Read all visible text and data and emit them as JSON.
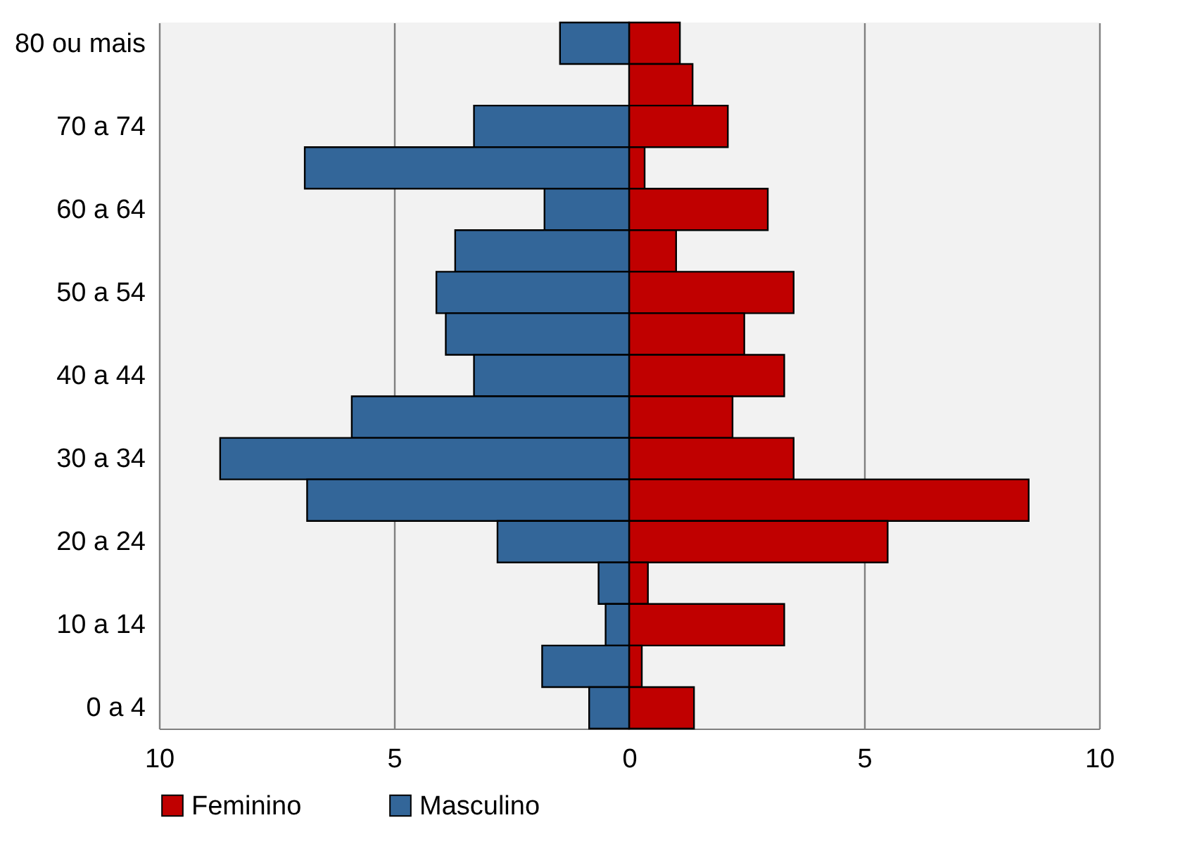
{
  "chart_data": {
    "type": "bar",
    "orientation": "horizontal",
    "stacked": true,
    "categories": [
      "80 ou mais",
      null,
      "70 a 74",
      null,
      "60 a 64",
      null,
      "50 a 54",
      null,
      "40 a 44",
      null,
      "30 a 34",
      null,
      "20 a 24",
      null,
      "10 a 14",
      null,
      "0 a 4"
    ],
    "series": [
      {
        "name": "Feminino",
        "color": "#c00000",
        "values": [
          1.08,
          1.35,
          2.1,
          0.33,
          2.95,
          1.0,
          3.5,
          2.45,
          3.3,
          2.2,
          3.5,
          8.5,
          5.5,
          0.4,
          3.3,
          0.27,
          1.38
        ]
      },
      {
        "name": "Masculino",
        "color": "#336699",
        "values": [
          -1.47,
          null,
          -3.3,
          -6.9,
          -1.8,
          -3.7,
          -4.1,
          -3.9,
          -3.3,
          -5.9,
          -8.7,
          -6.85,
          -2.8,
          -0.65,
          -0.5,
          -1.85,
          -0.85
        ]
      }
    ],
    "xlim": [
      -10,
      10
    ],
    "xticks": [
      {
        "value": -10,
        "label": "10"
      },
      {
        "value": -5,
        "label": "5"
      },
      0,
      5,
      10
    ],
    "grid": "x",
    "legend": "bottom"
  }
}
